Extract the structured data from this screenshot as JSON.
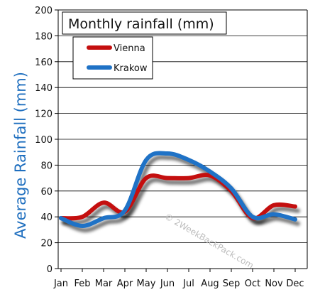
{
  "chart_data": {
    "type": "line",
    "title": "Monthly rainfall (mm)",
    "xlabel": "",
    "ylabel": "Average Rainfall (mm)",
    "categories": [
      "Jan",
      "Feb",
      "Mar",
      "Apr",
      "May",
      "Jun",
      "Jul",
      "Aug",
      "Sep",
      "Oct",
      "Nov",
      "Dec"
    ],
    "ylim": [
      0,
      200
    ],
    "yticks": [
      0,
      20,
      40,
      60,
      80,
      100,
      120,
      140,
      160,
      180,
      200
    ],
    "grid": true,
    "legend_position": "top-left",
    "series": [
      {
        "name": "Vienna",
        "color": "#c40f0f",
        "values": [
          39,
          40,
          51,
          44,
          70,
          70,
          70,
          72,
          60,
          39,
          49,
          48
        ]
      },
      {
        "name": "Krakow",
        "color": "#1f72c6",
        "values": [
          39,
          33,
          39,
          45,
          84,
          89,
          84,
          75,
          62,
          40,
          42,
          38
        ]
      }
    ],
    "watermark": "© 2WeekBackPack.com"
  }
}
